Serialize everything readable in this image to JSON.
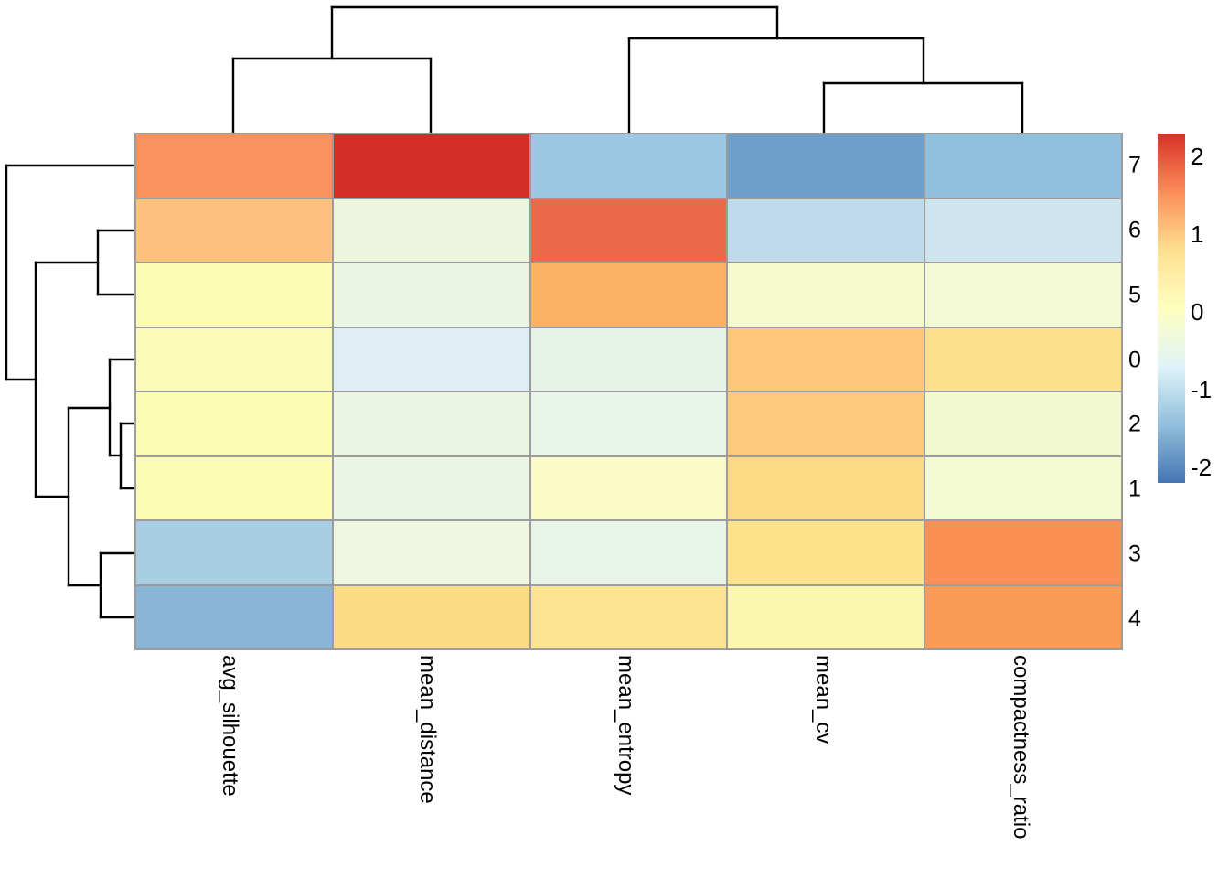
{
  "heatmap": {
    "row_labels": [
      "7",
      "6",
      "5",
      "0",
      "2",
      "1",
      "3",
      "4"
    ],
    "col_labels": [
      "avg_silhouette",
      "mean_distance",
      "mean_entropy",
      "mean_cv",
      "compactness_ratio"
    ],
    "cell_colors": [
      [
        "#FB915C",
        "#D42E28",
        "#9CC8E1",
        "#6E9FCB",
        "#90BFDD"
      ],
      [
        "#FCC27D",
        "#EDF5DE",
        "#EC6A49",
        "#BFDAEB",
        "#CEE4EF"
      ],
      [
        "#FBFBB4",
        "#ECF5E2",
        "#FDB165",
        "#F5FACC",
        "#F3F9D4"
      ],
      [
        "#FAFBB7",
        "#DFEDF4",
        "#E7F3E6",
        "#FDC77C",
        "#FBE18C"
      ],
      [
        "#FBFBB4",
        "#EBF5E3",
        "#E9F4EB",
        "#FDC97D",
        "#F1F8D2"
      ],
      [
        "#FBFBB4",
        "#ECF5E5",
        "#FAFCC8",
        "#FDD985",
        "#F3F9D0"
      ],
      [
        "#A9CEE4",
        "#EFF7E0",
        "#E9F4E9",
        "#FDE28C",
        "#FA9054"
      ],
      [
        "#89B6D6",
        "#FCDB87",
        "#FBE392",
        "#FBF7AE",
        "#FA9B58"
      ]
    ],
    "grid_color": "#9C9C9C"
  },
  "colorbar": {
    "gradient_top_to_bottom": [
      "#D73027",
      "#FC8D59",
      "#FEE090",
      "#FFFFBF",
      "#E0F3F8",
      "#91BFDB",
      "#4575B4"
    ],
    "ticks": [
      {
        "label": "2",
        "value": 2
      },
      {
        "label": "1",
        "value": 1
      },
      {
        "label": "0",
        "value": 0
      },
      {
        "label": "-1",
        "value": -1
      },
      {
        "label": "-2",
        "value": -2
      }
    ],
    "value_max": 2.3,
    "value_min": -2.2
  },
  "dendrograms": {
    "line_color": "#000000",
    "col_segments": [
      [
        255,
        145,
        255,
        64
      ],
      [
        471,
        145,
        471,
        64
      ],
      [
        255,
        64,
        471,
        64
      ],
      [
        363,
        64,
        363,
        8
      ],
      [
        363,
        8,
        850,
        8
      ],
      [
        850,
        8,
        850,
        42
      ],
      [
        688,
        42,
        1010,
        42
      ],
      [
        688,
        42,
        688,
        145
      ],
      [
        1010,
        42,
        1010,
        91
      ],
      [
        901,
        91,
        1118,
        91
      ],
      [
        901,
        91,
        901,
        145
      ],
      [
        1118,
        91,
        1118,
        145
      ]
    ],
    "row_segments": [
      [
        147,
        181,
        7,
        181
      ],
      [
        7,
        181,
        7,
        415
      ],
      [
        7,
        415,
        39,
        415
      ],
      [
        39,
        287,
        39,
        543
      ],
      [
        39,
        287,
        107,
        287
      ],
      [
        107,
        252,
        107,
        322
      ],
      [
        107,
        252,
        147,
        252
      ],
      [
        107,
        322,
        147,
        322
      ],
      [
        39,
        543,
        75,
        543
      ],
      [
        75,
        446,
        75,
        640
      ],
      [
        75,
        446,
        120,
        446
      ],
      [
        120,
        393,
        120,
        498
      ],
      [
        120,
        393,
        147,
        393
      ],
      [
        120,
        498,
        132,
        498
      ],
      [
        132,
        463,
        132,
        534
      ],
      [
        132,
        463,
        147,
        463
      ],
      [
        132,
        534,
        147,
        534
      ],
      [
        75,
        640,
        110,
        640
      ],
      [
        110,
        605,
        110,
        675
      ],
      [
        110,
        605,
        147,
        605
      ],
      [
        110,
        675,
        147,
        675
      ]
    ]
  },
  "chart_data": {
    "type": "heatmap",
    "title": "",
    "rows": [
      "7",
      "6",
      "5",
      "0",
      "2",
      "1",
      "3",
      "4"
    ],
    "columns": [
      "avg_silhouette",
      "mean_distance",
      "mean_entropy",
      "mean_cv",
      "compactness_ratio"
    ],
    "values_zscore_estimated_from_color": [
      [
        1.6,
        2.3,
        -1.5,
        -2.0,
        -1.6
      ],
      [
        1.1,
        -0.4,
        1.9,
        -1.1,
        -1.0
      ],
      [
        0.0,
        -0.45,
        1.3,
        -0.15,
        -0.25
      ],
      [
        0.0,
        -0.8,
        -0.55,
        1.0,
        0.75
      ],
      [
        0.0,
        -0.45,
        -0.55,
        1.0,
        -0.25
      ],
      [
        0.0,
        -0.45,
        -0.1,
        0.9,
        -0.25
      ],
      [
        -1.3,
        -0.4,
        -0.55,
        0.8,
        1.6
      ],
      [
        -1.7,
        0.85,
        0.7,
        0.1,
        1.5
      ]
    ],
    "colorbar_ticks": [
      2,
      1,
      0,
      -1,
      -2
    ],
    "colormap": "RdYlBu reversed (blue = low, red = high)",
    "row_clustering_newick": "(7,((6,5),((0,(2,1)),(3,4))))",
    "col_clustering_newick": "((avg_silhouette,mean_distance),(mean_entropy,(mean_cv,compactness_ratio)))",
    "legend_position": "right",
    "grid": true
  }
}
